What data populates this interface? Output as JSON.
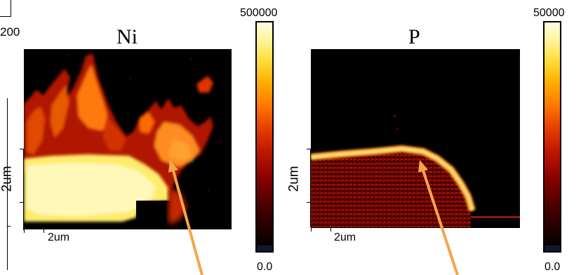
{
  "left_fragment": {
    "value": "200"
  },
  "panels": [
    {
      "id": "ni",
      "title": "Ni",
      "x_scale_label": "2um",
      "y_scale_label": "2um",
      "colorbar": {
        "max_label": "500000",
        "min_label": "0.0"
      }
    },
    {
      "id": "p",
      "title": "P",
      "x_scale_label": "2um",
      "y_scale_label": "2um",
      "colorbar": {
        "max_label": "50000",
        "min_label": "0.0"
      }
    }
  ],
  "colormap": [
    "#000000",
    "#3a0000",
    "#7a0000",
    "#b01000",
    "#e03000",
    "#ff6a00",
    "#ffb000",
    "#ffe84a",
    "#fffcc8"
  ],
  "arrow_color": "#f5a54a"
}
